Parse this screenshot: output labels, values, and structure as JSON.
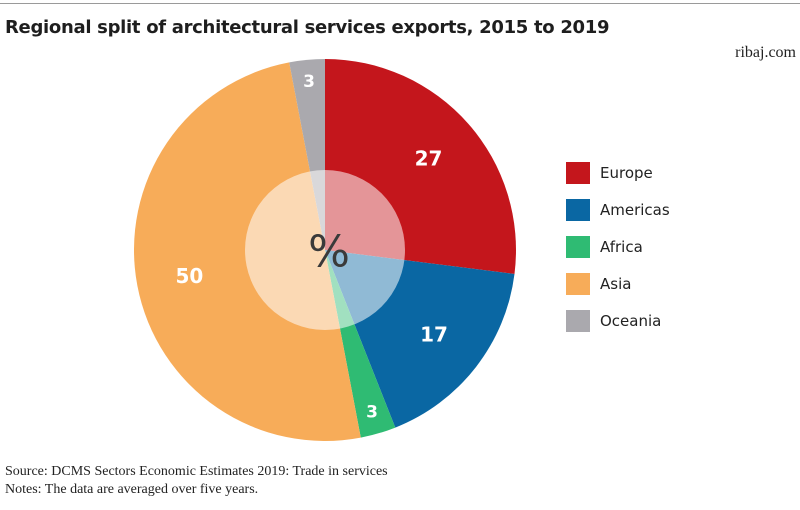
{
  "header": {
    "title": "Regional split of architectural services exports, 2015 to 2019",
    "brand": "ribaj.com"
  },
  "chart_data": {
    "type": "pie",
    "style": "donut-with-translucent-center",
    "center_label": "%",
    "legend_placement": "right",
    "categories": [
      "Europe",
      "Americas",
      "Africa",
      "Asia",
      "Oceania"
    ],
    "values": [
      27,
      17,
      3,
      50,
      3
    ],
    "value_labels": [
      "27",
      "17",
      "3",
      "50",
      "3"
    ],
    "colors": [
      "#c4161c",
      "#0a67a3",
      "#2fbb73",
      "#f7ac59",
      "#aaa9ae"
    ]
  },
  "footer": {
    "source": "Source: DCMS Sectors Economic Estimates 2019: Trade in services",
    "notes": "Notes: The data are averaged over five years."
  }
}
